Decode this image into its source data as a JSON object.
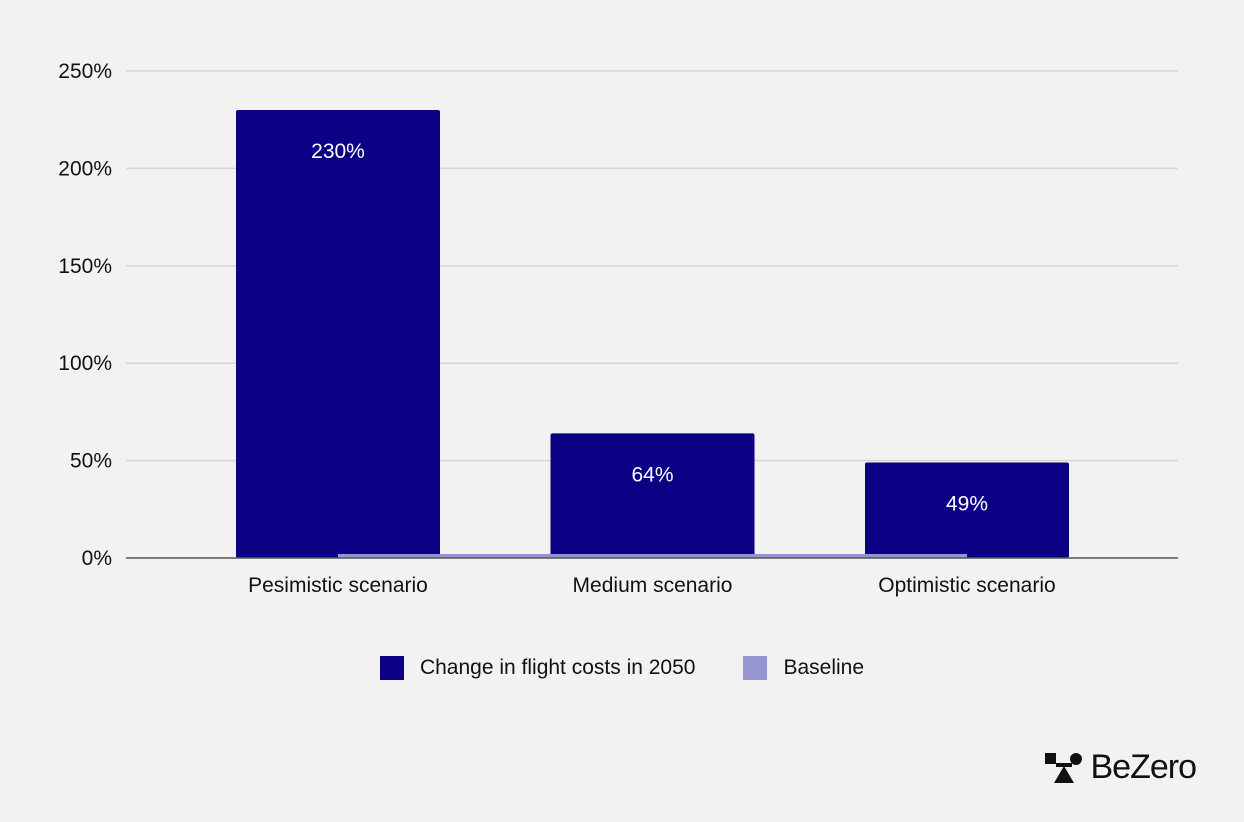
{
  "chart_data": {
    "type": "bar",
    "categories": [
      "Pesimistic scenario",
      "Medium scenario",
      "Optimistic scenario"
    ],
    "series": [
      {
        "name": "Change in flight costs in 2050",
        "values": [
          230,
          64,
          49
        ],
        "labels": [
          "230%",
          "64%",
          "49%"
        ],
        "color": "#0c0085"
      },
      {
        "name": "Baseline",
        "values": [
          0,
          0,
          0
        ],
        "color": "#9795d1"
      }
    ],
    "ylim": [
      0,
      250
    ],
    "yticks": [
      0,
      50,
      100,
      150,
      200,
      250
    ],
    "ytick_labels": [
      "0%",
      "50%",
      "100%",
      "150%",
      "200%",
      "250%"
    ],
    "grid": true,
    "legend_position": "bottom"
  },
  "brand": {
    "name": "BeZero",
    "logo_icon": "bezero-mark-icon"
  },
  "colors": {
    "background": "#f2f2f2",
    "bar": "#0c0085",
    "baseline": "#9795d1",
    "grid": "#d4d4d4",
    "axis": "#555555",
    "text": "#111111"
  }
}
